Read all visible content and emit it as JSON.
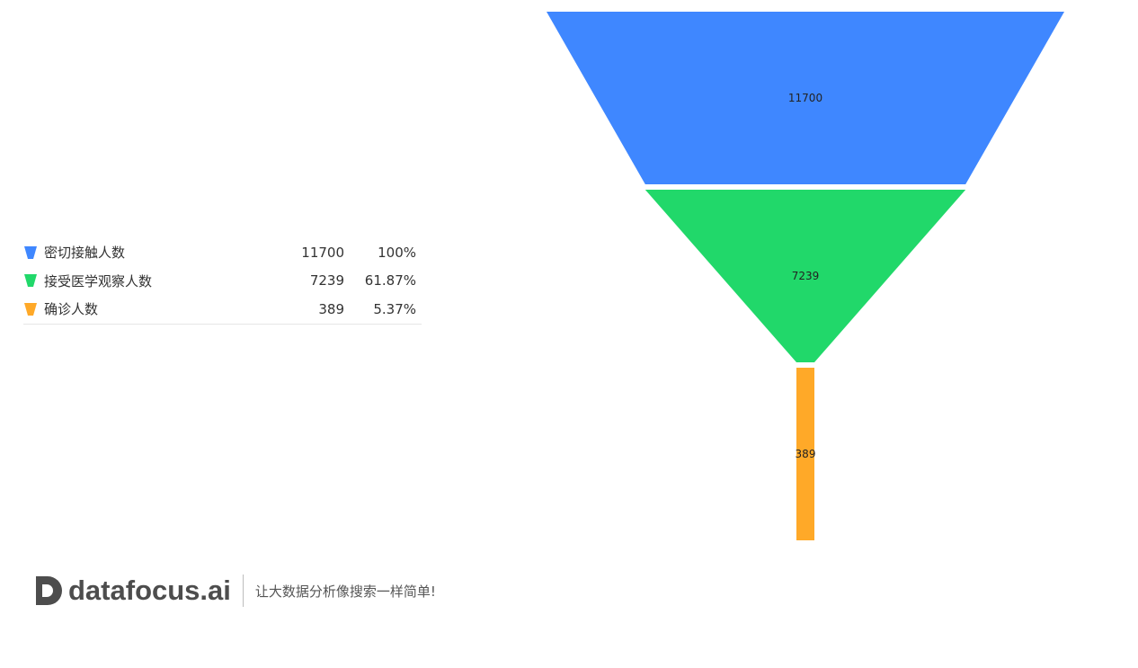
{
  "chart_data": {
    "type": "funnel",
    "stages": [
      {
        "name": "密切接触人数",
        "value": 11700,
        "percent": "100%",
        "color": "#3f87ff"
      },
      {
        "name": "接受医学观察人数",
        "value": 7239,
        "percent": "61.87%",
        "color": "#21d86a"
      },
      {
        "name": "确诊人数",
        "value": 389,
        "percent": "5.37%",
        "color": "#ffa928"
      }
    ],
    "legend_placement": "left",
    "title": ""
  },
  "footer": {
    "brand": "datafocus.ai",
    "tagline": "让大数据分析像搜索一样简单!"
  }
}
